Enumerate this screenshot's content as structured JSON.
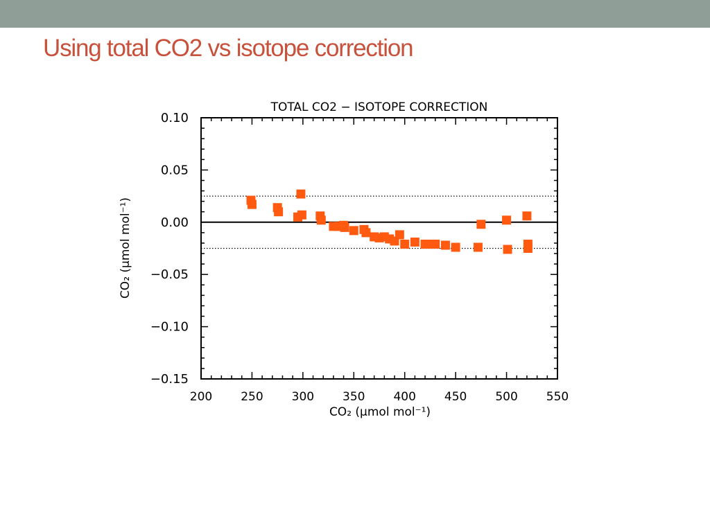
{
  "slide": {
    "title": "Using total CO2 vs isotope correction",
    "header_bar_color": "#8f9e96",
    "title_color": "#c8513b"
  },
  "chart_data": {
    "type": "scatter",
    "title": "TOTAL CO2 − ISOTOPE CORRECTION",
    "xlabel": "CO₂ (μmol mol⁻¹)",
    "ylabel": "CO₂ (μmol mol⁻¹)",
    "xlim": [
      200,
      550
    ],
    "ylim": [
      -0.15,
      0.1
    ],
    "xticks": [
      200,
      250,
      300,
      350,
      400,
      450,
      500,
      550
    ],
    "yticks": [
      0.1,
      0.05,
      0.0,
      -0.05,
      -0.1,
      -0.15
    ],
    "ytick_labels": [
      "0.10",
      "0.05",
      "0.00",
      "−0.05",
      "−0.10",
      "−0.15"
    ],
    "reference_lines": [
      {
        "y": 0.0,
        "style": "solid"
      },
      {
        "y": 0.025,
        "style": "dotted"
      },
      {
        "y": -0.025,
        "style": "dotted"
      }
    ],
    "grid": false,
    "marker_color": "#ff5a10",
    "marker_shape": "square",
    "series": [
      {
        "points": [
          [
            249,
            0.021
          ],
          [
            250,
            0.017
          ],
          [
            275,
            0.014
          ],
          [
            276,
            0.01
          ],
          [
            295,
            0.005
          ],
          [
            298,
            0.027
          ],
          [
            299,
            0.007
          ],
          [
            317,
            0.006
          ],
          [
            318,
            0.002
          ],
          [
            330,
            -0.004
          ],
          [
            335,
            -0.004
          ],
          [
            340,
            -0.003
          ],
          [
            341,
            -0.005
          ],
          [
            350,
            -0.008
          ],
          [
            360,
            -0.007
          ],
          [
            362,
            -0.01
          ],
          [
            370,
            -0.014
          ],
          [
            375,
            -0.015
          ],
          [
            380,
            -0.014
          ],
          [
            385,
            -0.016
          ],
          [
            390,
            -0.018
          ],
          [
            395,
            -0.012
          ],
          [
            400,
            -0.021
          ],
          [
            410,
            -0.019
          ],
          [
            420,
            -0.021
          ],
          [
            425,
            -0.021
          ],
          [
            430,
            -0.021
          ],
          [
            440,
            -0.022
          ],
          [
            450,
            -0.024
          ],
          [
            472,
            -0.024
          ],
          [
            475,
            -0.002
          ],
          [
            500,
            0.002
          ],
          [
            501,
            -0.026
          ],
          [
            520,
            0.006
          ],
          [
            521,
            -0.021
          ],
          [
            521,
            -0.025
          ]
        ]
      }
    ]
  }
}
